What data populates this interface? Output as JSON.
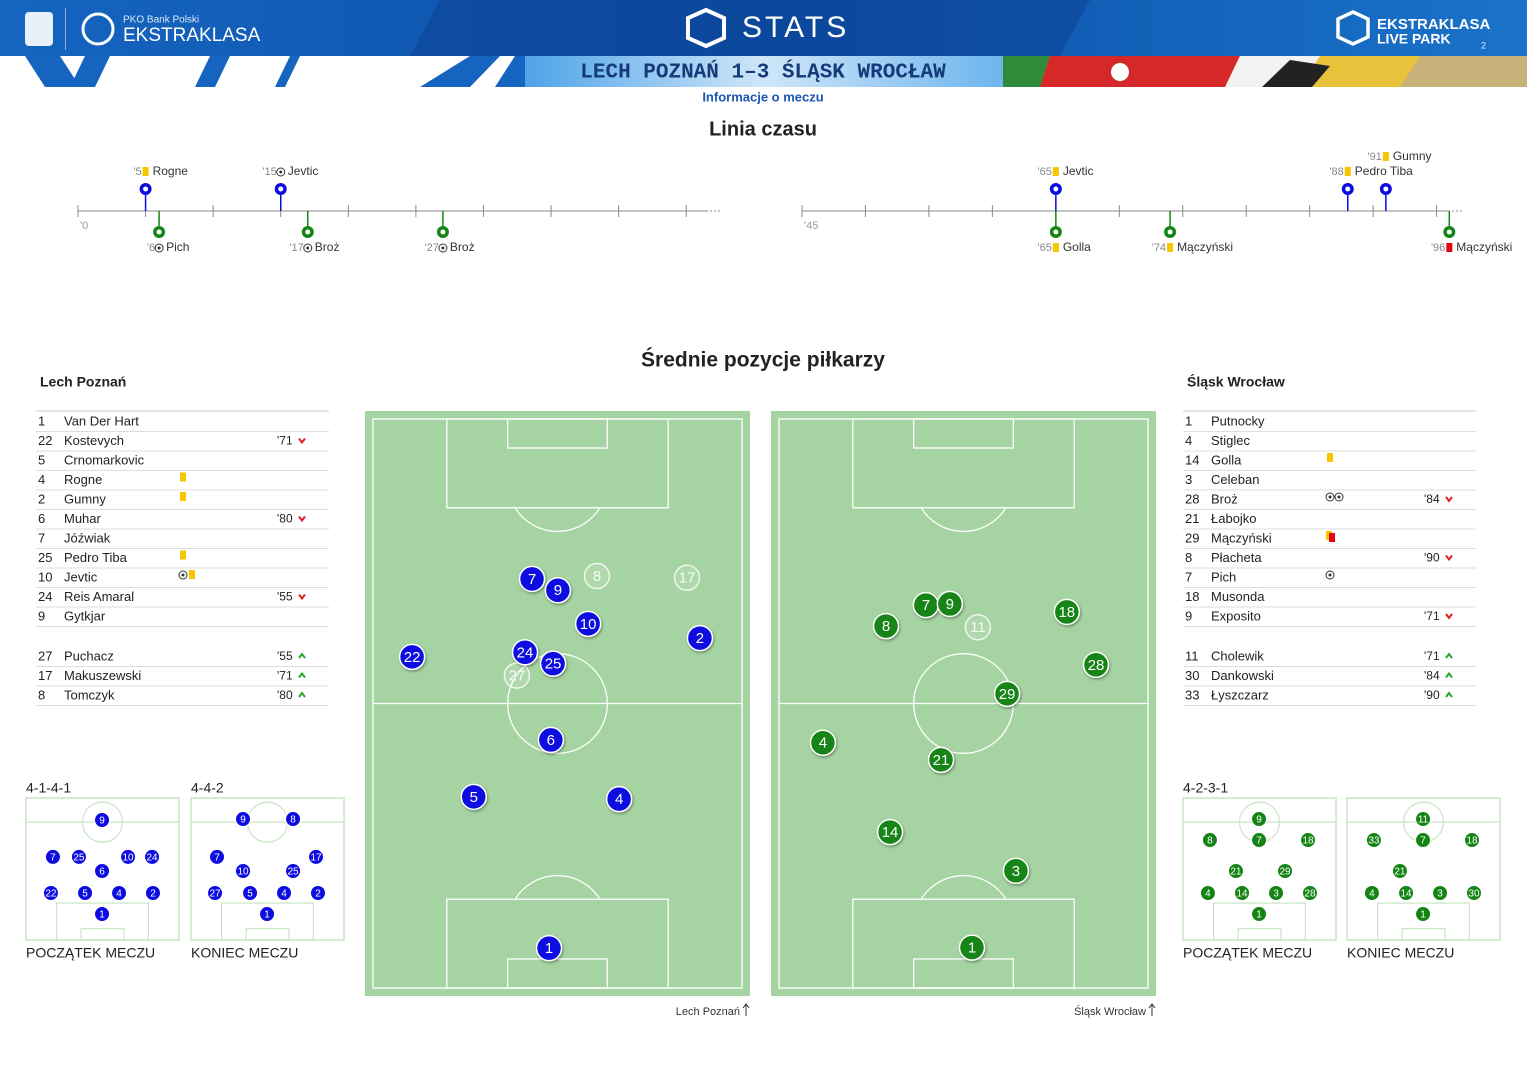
{
  "header": {
    "bank": "PKO Bank Polski",
    "league": "EKSTRAKLASA",
    "stats": "STATS",
    "live_league": "EKSTRAKLASA",
    "live_park": "LIVE PARK",
    "badge": "2",
    "match": "LECH POZNAŃ 1–3 ŚLĄSK WROCŁAW",
    "info": "Informacje o meczu"
  },
  "timeline": {
    "title": "Linia czasu",
    "halves": [
      {
        "start": {
          "value": 0,
          "label": "'0"
        },
        "xlim": [
          0,
          47.5
        ],
        "xticks": [
          0,
          5,
          10,
          15,
          20,
          25,
          30,
          35,
          40,
          45
        ],
        "top": [
          {
            "minute": {
              "value": 5,
              "label": "'5"
            },
            "icon": "yellow",
            "player": "Rogne"
          },
          {
            "minute": {
              "value": 15,
              "label": "'15"
            },
            "icon": "goal",
            "player": "Jevtic"
          }
        ],
        "bottom": [
          {
            "minute": {
              "value": 6,
              "label": "'6"
            },
            "icon": "goal",
            "player": "Pich"
          },
          {
            "minute": {
              "value": 17,
              "label": "'17"
            },
            "icon": "goal",
            "player": "Broż"
          },
          {
            "minute": {
              "value": 27,
              "label": "'27"
            },
            "icon": "goal",
            "player": "Broż"
          }
        ]
      },
      {
        "start": {
          "value": 45,
          "label": "'45"
        },
        "xlim": [
          45,
          97
        ],
        "xticks": [
          45,
          50,
          55,
          60,
          65,
          70,
          75,
          80,
          85,
          90,
          95
        ],
        "top": [
          {
            "minute": {
              "value": 65,
              "label": "'65"
            },
            "icon": "yellow",
            "player": "Jevtic"
          },
          {
            "minute": {
              "value": 88,
              "label": "'88"
            },
            "icon": "yellow",
            "player": "Pedro Tiba"
          },
          {
            "minute": {
              "value": 91,
              "label": "'91"
            },
            "icon": "yellow",
            "player": "Gumny"
          }
        ],
        "bottom": [
          {
            "minute": {
              "value": 65,
              "label": "'65"
            },
            "icon": "yellow",
            "player": "Golla"
          },
          {
            "minute": {
              "value": 74,
              "label": "'74"
            },
            "icon": "yellow",
            "player": "Mączyński"
          },
          {
            "minute": {
              "value": 96,
              "label": "'96"
            },
            "icon": "red",
            "player": "Mączyński"
          }
        ]
      }
    ]
  },
  "positions": {
    "title": "Średnie pozycje piłkarzy"
  },
  "teams": [
    {
      "name": "Lech Poznań",
      "color": "#0c0ce0",
      "pitch_caption": "Lech Poznań",
      "starters": [
        {
          "number": 1,
          "name": "Van Der Hart"
        },
        {
          "number": 22,
          "name": "Kostevych",
          "sub": {
            "minute": "'71",
            "dir": "off"
          }
        },
        {
          "number": 5,
          "name": "Crnomarkovic"
        },
        {
          "number": 4,
          "name": "Rogne",
          "icons": [
            "yellow"
          ]
        },
        {
          "number": 2,
          "name": "Gumny",
          "icons": [
            "yellow"
          ]
        },
        {
          "number": 6,
          "name": "Muhar",
          "sub": {
            "minute": "'80",
            "dir": "off"
          }
        },
        {
          "number": 7,
          "name": "Jóźwiak"
        },
        {
          "number": 25,
          "name": "Pedro Tiba",
          "icons": [
            "yellow"
          ]
        },
        {
          "number": 10,
          "name": "Jevtic",
          "icons": [
            "goal",
            "yellow"
          ]
        },
        {
          "number": 24,
          "name": "Reis Amaral",
          "sub": {
            "minute": "'55",
            "dir": "off"
          }
        },
        {
          "number": 9,
          "name": "Gytkjar"
        }
      ],
      "subs": [
        {
          "number": 27,
          "name": "Puchacz",
          "sub": {
            "minute": "'55",
            "dir": "on"
          }
        },
        {
          "number": 17,
          "name": "Makuszewski",
          "sub": {
            "minute": "'71",
            "dir": "on"
          }
        },
        {
          "number": 8,
          "name": "Tomczyk",
          "sub": {
            "minute": "'80",
            "dir": "on"
          }
        }
      ],
      "avg": [
        {
          "number": 8,
          "x": 60.7,
          "y": 27.6,
          "sub": true
        },
        {
          "number": 17,
          "x": 85.1,
          "y": 27.9,
          "sub": true
        },
        {
          "number": 27,
          "x": 39.0,
          "y": 45.1,
          "sub": true
        },
        {
          "number": 7,
          "x": 43.1,
          "y": 28.1
        },
        {
          "number": 9,
          "x": 50.1,
          "y": 30.1
        },
        {
          "number": 10,
          "x": 58.3,
          "y": 36.0
        },
        {
          "number": 2,
          "x": 88.6,
          "y": 38.5
        },
        {
          "number": 22,
          "x": 10.6,
          "y": 41.8
        },
        {
          "number": 24,
          "x": 41.2,
          "y": 41.0
        },
        {
          "number": 25,
          "x": 48.8,
          "y": 43.0
        },
        {
          "number": 6,
          "x": 48.2,
          "y": 56.4
        },
        {
          "number": 5,
          "x": 27.3,
          "y": 66.4
        },
        {
          "number": 4,
          "x": 66.7,
          "y": 66.8
        },
        {
          "number": 1,
          "x": 47.7,
          "y": 93.0
        }
      ],
      "formations": [
        {
          "label": "4-1-4-1",
          "caption": "POCZĄTEK MECZU",
          "players": [
            {
              "number": 9,
              "x": 49.7,
              "y": 15.5
            },
            {
              "number": 7,
              "x": 17.6,
              "y": 41.5
            },
            {
              "number": 25,
              "x": 34.6,
              "y": 41.5
            },
            {
              "number": 6,
              "x": 49.7,
              "y": 51.4
            },
            {
              "number": 10,
              "x": 66.7,
              "y": 41.5
            },
            {
              "number": 24,
              "x": 82.4,
              "y": 41.5
            },
            {
              "number": 22,
              "x": 16.3,
              "y": 66.9
            },
            {
              "number": 5,
              "x": 38.6,
              "y": 66.9
            },
            {
              "number": 4,
              "x": 60.8,
              "y": 66.9
            },
            {
              "number": 2,
              "x": 83.0,
              "y": 66.9
            },
            {
              "number": 1,
              "x": 49.7,
              "y": 81.7
            }
          ]
        },
        {
          "label": "4-4-2",
          "caption": "KONIEC MECZU",
          "players": [
            {
              "number": 9,
              "x": 34.0,
              "y": 14.8
            },
            {
              "number": 8,
              "x": 66.7,
              "y": 14.8
            },
            {
              "number": 7,
              "x": 17.0,
              "y": 41.5
            },
            {
              "number": 10,
              "x": 34.0,
              "y": 51.4
            },
            {
              "number": 25,
              "x": 66.7,
              "y": 51.4
            },
            {
              "number": 17,
              "x": 81.7,
              "y": 41.5
            },
            {
              "number": 27,
              "x": 15.7,
              "y": 66.9
            },
            {
              "number": 5,
              "x": 38.6,
              "y": 66.9
            },
            {
              "number": 4,
              "x": 60.8,
              "y": 66.9
            },
            {
              "number": 2,
              "x": 83.0,
              "y": 66.9
            },
            {
              "number": 1,
              "x": 49.7,
              "y": 81.7
            }
          ]
        }
      ]
    },
    {
      "name": "Śląsk Wrocław",
      "color": "#148414",
      "pitch_caption": "Śląsk Wrocław",
      "starters": [
        {
          "number": 1,
          "name": "Putnocky"
        },
        {
          "number": 4,
          "name": "Stiglec"
        },
        {
          "number": 14,
          "name": "Golla",
          "icons": [
            "yellow"
          ]
        },
        {
          "number": 3,
          "name": "Celeban"
        },
        {
          "number": 28,
          "name": "Broż",
          "icons": [
            "goal",
            "goal"
          ],
          "sub": {
            "minute": "'84",
            "dir": "off"
          }
        },
        {
          "number": 21,
          "name": "Łabojko"
        },
        {
          "number": 29,
          "name": "Mączyński",
          "icons": [
            "yellow-red"
          ]
        },
        {
          "number": 8,
          "name": "Płacheta",
          "sub": {
            "minute": "'90",
            "dir": "off"
          }
        },
        {
          "number": 7,
          "name": "Pich",
          "icons": [
            "goal"
          ]
        },
        {
          "number": 18,
          "name": "Musonda"
        },
        {
          "number": 9,
          "name": "Exposito",
          "sub": {
            "minute": "'71",
            "dir": "off"
          }
        }
      ],
      "subs": [
        {
          "number": 11,
          "name": "Cholewik",
          "sub": {
            "minute": "'71",
            "dir": "on"
          }
        },
        {
          "number": 30,
          "name": "Dankowski",
          "sub": {
            "minute": "'84",
            "dir": "on"
          }
        },
        {
          "number": 33,
          "name": "Łyszczarz",
          "sub": {
            "minute": "'90",
            "dir": "on"
          }
        }
      ],
      "avg": [
        {
          "number": 11,
          "x": 53.9,
          "y": 36.6,
          "sub": true
        },
        {
          "number": 7,
          "x": 39.8,
          "y": 32.7
        },
        {
          "number": 9,
          "x": 46.3,
          "y": 32.5
        },
        {
          "number": 8,
          "x": 29.0,
          "y": 36.4
        },
        {
          "number": 18,
          "x": 78.0,
          "y": 33.9
        },
        {
          "number": 28,
          "x": 85.9,
          "y": 43.2
        },
        {
          "number": 29,
          "x": 61.8,
          "y": 48.3
        },
        {
          "number": 4,
          "x": 11.9,
          "y": 56.9
        },
        {
          "number": 21,
          "x": 43.9,
          "y": 59.9
        },
        {
          "number": 14,
          "x": 30.1,
          "y": 72.6
        },
        {
          "number": 3,
          "x": 64.2,
          "y": 79.4
        },
        {
          "number": 1,
          "x": 52.3,
          "y": 92.9
        }
      ],
      "formations": [
        {
          "label": "4-2-3-1",
          "caption": "POCZĄTEK MECZU",
          "players": [
            {
              "number": 9,
              "x": 49.7,
              "y": 14.8
            },
            {
              "number": 8,
              "x": 17.6,
              "y": 29.6
            },
            {
              "number": 7,
              "x": 49.7,
              "y": 29.6
            },
            {
              "number": 18,
              "x": 81.7,
              "y": 29.6
            },
            {
              "number": 21,
              "x": 34.6,
              "y": 51.4
            },
            {
              "number": 29,
              "x": 66.7,
              "y": 51.4
            },
            {
              "number": 4,
              "x": 16.3,
              "y": 66.9
            },
            {
              "number": 14,
              "x": 38.6,
              "y": 66.9
            },
            {
              "number": 3,
              "x": 60.8,
              "y": 66.9
            },
            {
              "number": 28,
              "x": 83.0,
              "y": 66.9
            },
            {
              "number": 1,
              "x": 49.7,
              "y": 81.7
            }
          ]
        },
        {
          "caption": "KONIEC MECZU",
          "players": [
            {
              "number": 11,
              "x": 49.7,
              "y": 14.8
            },
            {
              "number": 33,
              "x": 17.6,
              "y": 29.6
            },
            {
              "number": 7,
              "x": 49.7,
              "y": 29.6
            },
            {
              "number": 18,
              "x": 81.7,
              "y": 29.6
            },
            {
              "number": 21,
              "x": 34.6,
              "y": 51.4
            },
            {
              "number": 4,
              "x": 16.3,
              "y": 66.9
            },
            {
              "number": 14,
              "x": 38.6,
              "y": 66.9
            },
            {
              "number": 3,
              "x": 60.8,
              "y": 66.9
            },
            {
              "number": 30,
              "x": 83.0,
              "y": 66.9
            },
            {
              "number": 1,
              "x": 49.7,
              "y": 81.7
            }
          ]
        }
      ]
    }
  ]
}
